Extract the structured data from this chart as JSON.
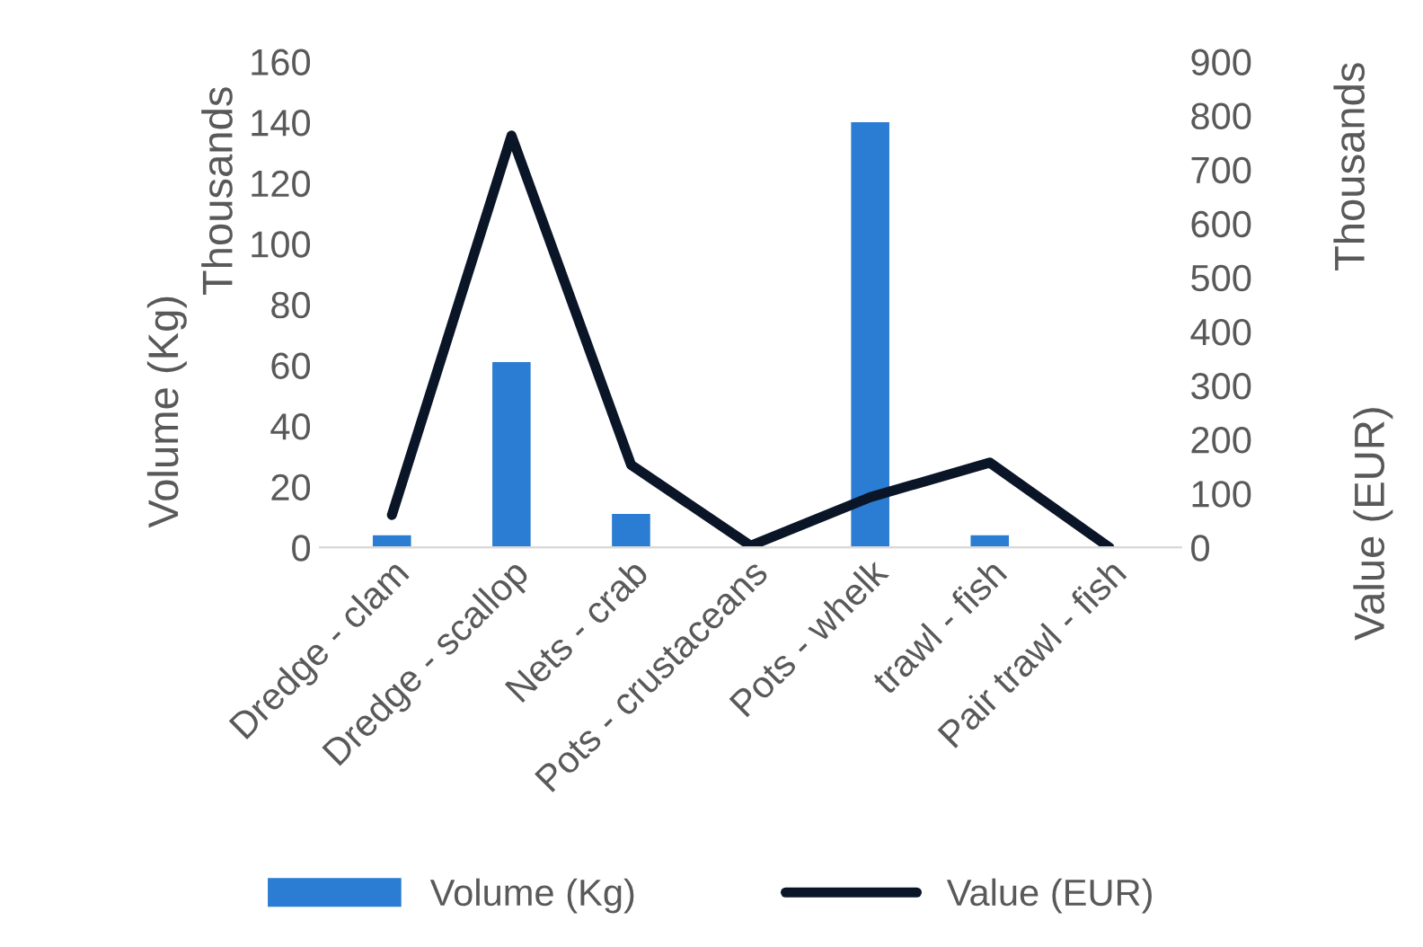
{
  "chart_data": {
    "type": "bar",
    "categories": [
      "Dredge - clam",
      "Dredge - scallop",
      "Nets - crab",
      "Pots - crustaceans",
      "Pots - whelk",
      "trawl - fish",
      "Pair trawl - fish"
    ],
    "series": [
      {
        "name": "Volume (Kg)",
        "color": "#2b7cd3",
        "values": [
          4,
          61,
          11,
          0,
          140,
          4,
          0
        ]
      },
      {
        "name": "Value (EUR)",
        "type": "line",
        "axis": "y2",
        "color": "#0a1628",
        "values": [
          60,
          763,
          153,
          3,
          93,
          157,
          0
        ]
      }
    ],
    "ylabel": "Volume (Kg)",
    "y2label": "Value (EUR)",
    "ylim": [
      0,
      160
    ],
    "yticks": [
      0,
      20,
      40,
      60,
      80,
      100,
      120,
      140,
      160
    ],
    "y2lim": [
      0,
      900
    ],
    "y2ticks": [
      0,
      100,
      200,
      300,
      400,
      500,
      600,
      700,
      800,
      900
    ],
    "annotations": [
      "Thousands",
      "Thousands"
    ],
    "grid": false,
    "legend": "bottom",
    "marker": "none",
    "line_style": "solid"
  }
}
